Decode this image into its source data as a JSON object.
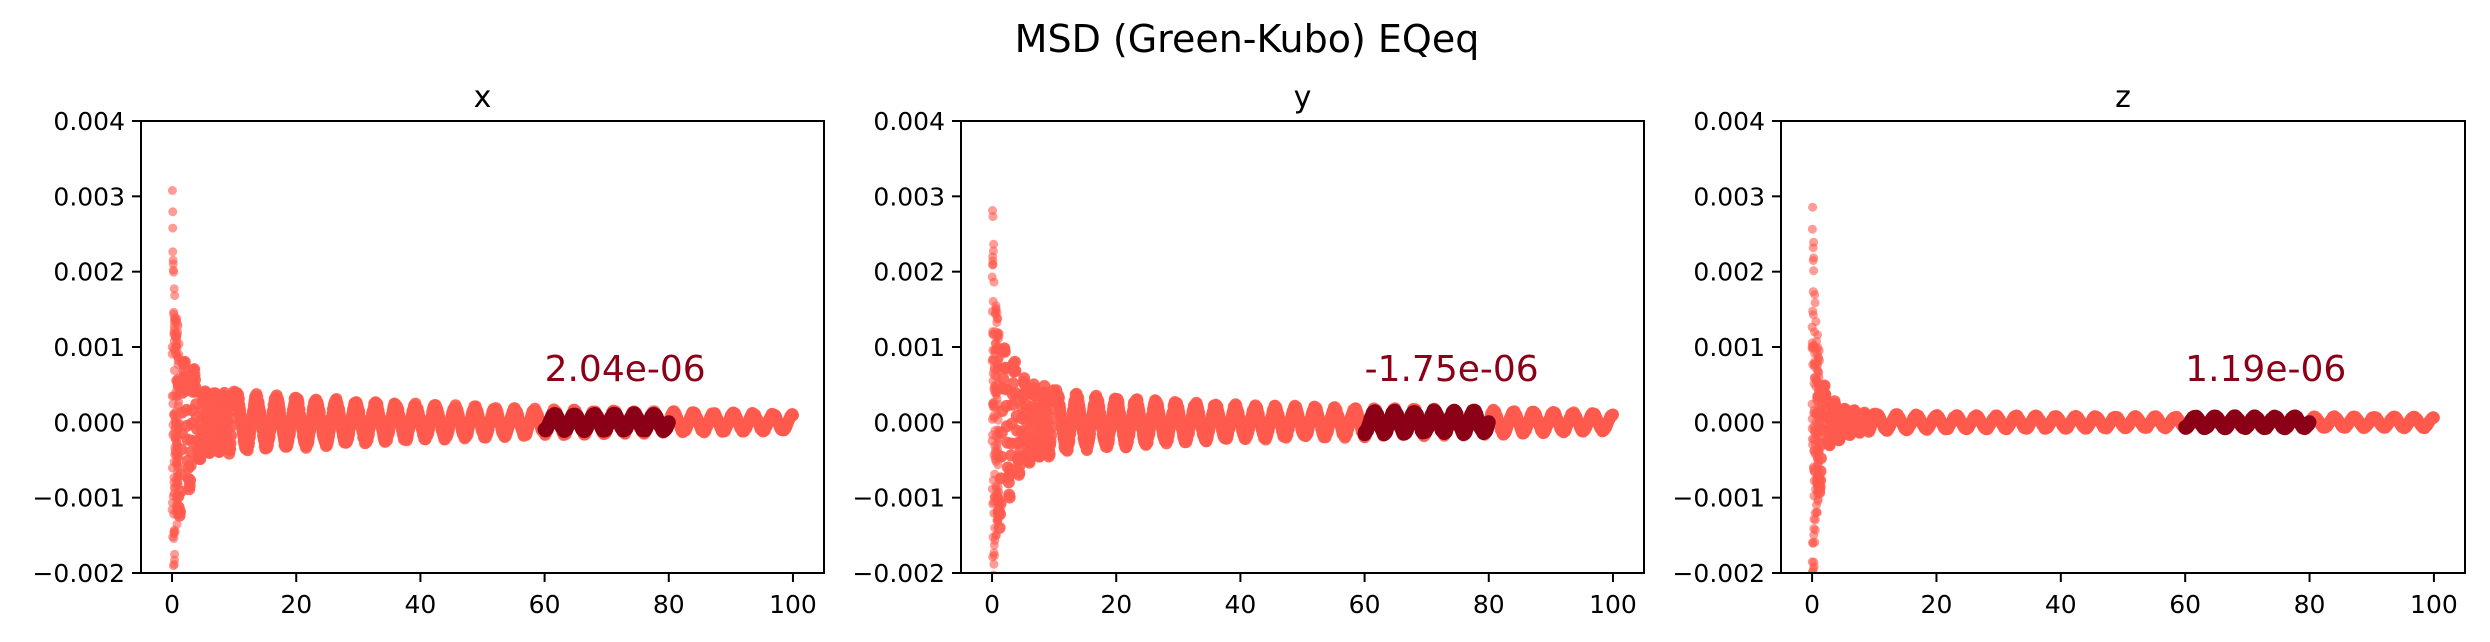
{
  "figure": {
    "title": "MSD (Green-Kubo) EQeq"
  },
  "colors": {
    "series": "#ff5a4e",
    "highlight": "#8b0016",
    "annotation": "#8b0016",
    "axis": "#000000"
  },
  "chart_data": [
    {
      "type": "scatter",
      "title": "x",
      "xlabel": "",
      "ylabel": "",
      "xlim": [
        -5,
        105
      ],
      "ylim": [
        -0.002,
        0.004
      ],
      "xticks": [
        0,
        20,
        40,
        60,
        80,
        100
      ],
      "xtick_labels": [
        "0",
        "20",
        "40",
        "60",
        "80",
        "100"
      ],
      "yticks": [
        -0.002,
        -0.001,
        0.0,
        0.001,
        0.002,
        0.003,
        0.004
      ],
      "ytick_labels": [
        "−0.002",
        "−0.001",
        "0.000",
        "0.001",
        "0.002",
        "0.003",
        "0.004"
      ],
      "grid": false,
      "series": [
        {
          "role": "full",
          "x_range": [
            0,
            100
          ],
          "envelope": {
            "t": [
              0,
              0.5,
              1,
              2,
              3,
              5,
              8,
              12,
              20,
              30,
              40,
              60,
              80,
              100
            ],
            "amp": [
              0.0033,
              0.0017,
              0.0014,
              0.0009,
              0.0009,
              0.0005,
              0.00045,
              0.0004,
              0.00035,
              0.0003,
              0.00025,
              0.00018,
              0.00015,
              0.00012
            ]
          }
        },
        {
          "role": "fit_window",
          "x_range": [
            60,
            80
          ],
          "amp": 0.00012
        }
      ],
      "annotations": [
        {
          "text": "2.04e-06",
          "x": 60,
          "y": 0.00055
        }
      ]
    },
    {
      "type": "scatter",
      "title": "y",
      "xlabel": "",
      "ylabel": "",
      "xlim": [
        -5,
        105
      ],
      "ylim": [
        -0.002,
        0.004
      ],
      "xticks": [
        0,
        20,
        40,
        60,
        80,
        100
      ],
      "xtick_labels": [
        "0",
        "20",
        "40",
        "60",
        "80",
        "100"
      ],
      "yticks": [
        -0.002,
        -0.001,
        0.0,
        0.001,
        0.002,
        0.003,
        0.004
      ],
      "ytick_labels": [
        "−0.002",
        "−0.001",
        "0.000",
        "0.001",
        "0.002",
        "0.003",
        "0.004"
      ],
      "grid": false,
      "series": [
        {
          "role": "full",
          "x_range": [
            0,
            100
          ],
          "envelope": {
            "t": [
              0,
              0.5,
              1,
              2,
              3,
              5,
              8,
              12,
              20,
              30,
              40,
              60,
              80,
              100
            ],
            "amp": [
              0.0033,
              0.0018,
              0.0015,
              0.0011,
              0.001,
              0.0006,
              0.0005,
              0.0004,
              0.00035,
              0.00028,
              0.00024,
              0.0002,
              0.00017,
              0.00012
            ]
          }
        },
        {
          "role": "fit_window",
          "x_range": [
            60,
            80
          ],
          "amp": 0.00016
        }
      ],
      "annotations": [
        {
          "text": "-1.75e-06",
          "x": 60,
          "y": 0.00055
        }
      ]
    },
    {
      "type": "scatter",
      "title": "z",
      "xlabel": "",
      "ylabel": "",
      "xlim": [
        -5,
        105
      ],
      "ylim": [
        -0.002,
        0.004
      ],
      "xticks": [
        0,
        20,
        40,
        60,
        80,
        100
      ],
      "xtick_labels": [
        "0",
        "20",
        "40",
        "60",
        "80",
        "100"
      ],
      "yticks": [
        -0.002,
        -0.001,
        0.0,
        0.001,
        0.002,
        0.003,
        0.004
      ],
      "ytick_labels": [
        "−0.002",
        "−0.001",
        "0.000",
        "0.001",
        "0.002",
        "0.003",
        "0.004"
      ],
      "grid": false,
      "series": [
        {
          "role": "full",
          "x_range": [
            0,
            100
          ],
          "envelope": {
            "t": [
              0,
              0.3,
              0.6,
              1,
              1.5,
              2,
              3,
              5,
              10,
              20,
              40,
              60,
              80,
              100
            ],
            "amp": [
              0.0033,
              0.0024,
              0.0015,
              0.0012,
              0.0008,
              0.0005,
              0.00035,
              0.0002,
              0.00012,
              0.0001,
              9e-05,
              8e-05,
              8e-05,
              8e-05
            ]
          }
        },
        {
          "role": "fit_window",
          "x_range": [
            60,
            80
          ],
          "amp": 8e-05
        }
      ],
      "annotations": [
        {
          "text": "1.19e-06",
          "x": 60,
          "y": 0.00055
        }
      ]
    }
  ]
}
